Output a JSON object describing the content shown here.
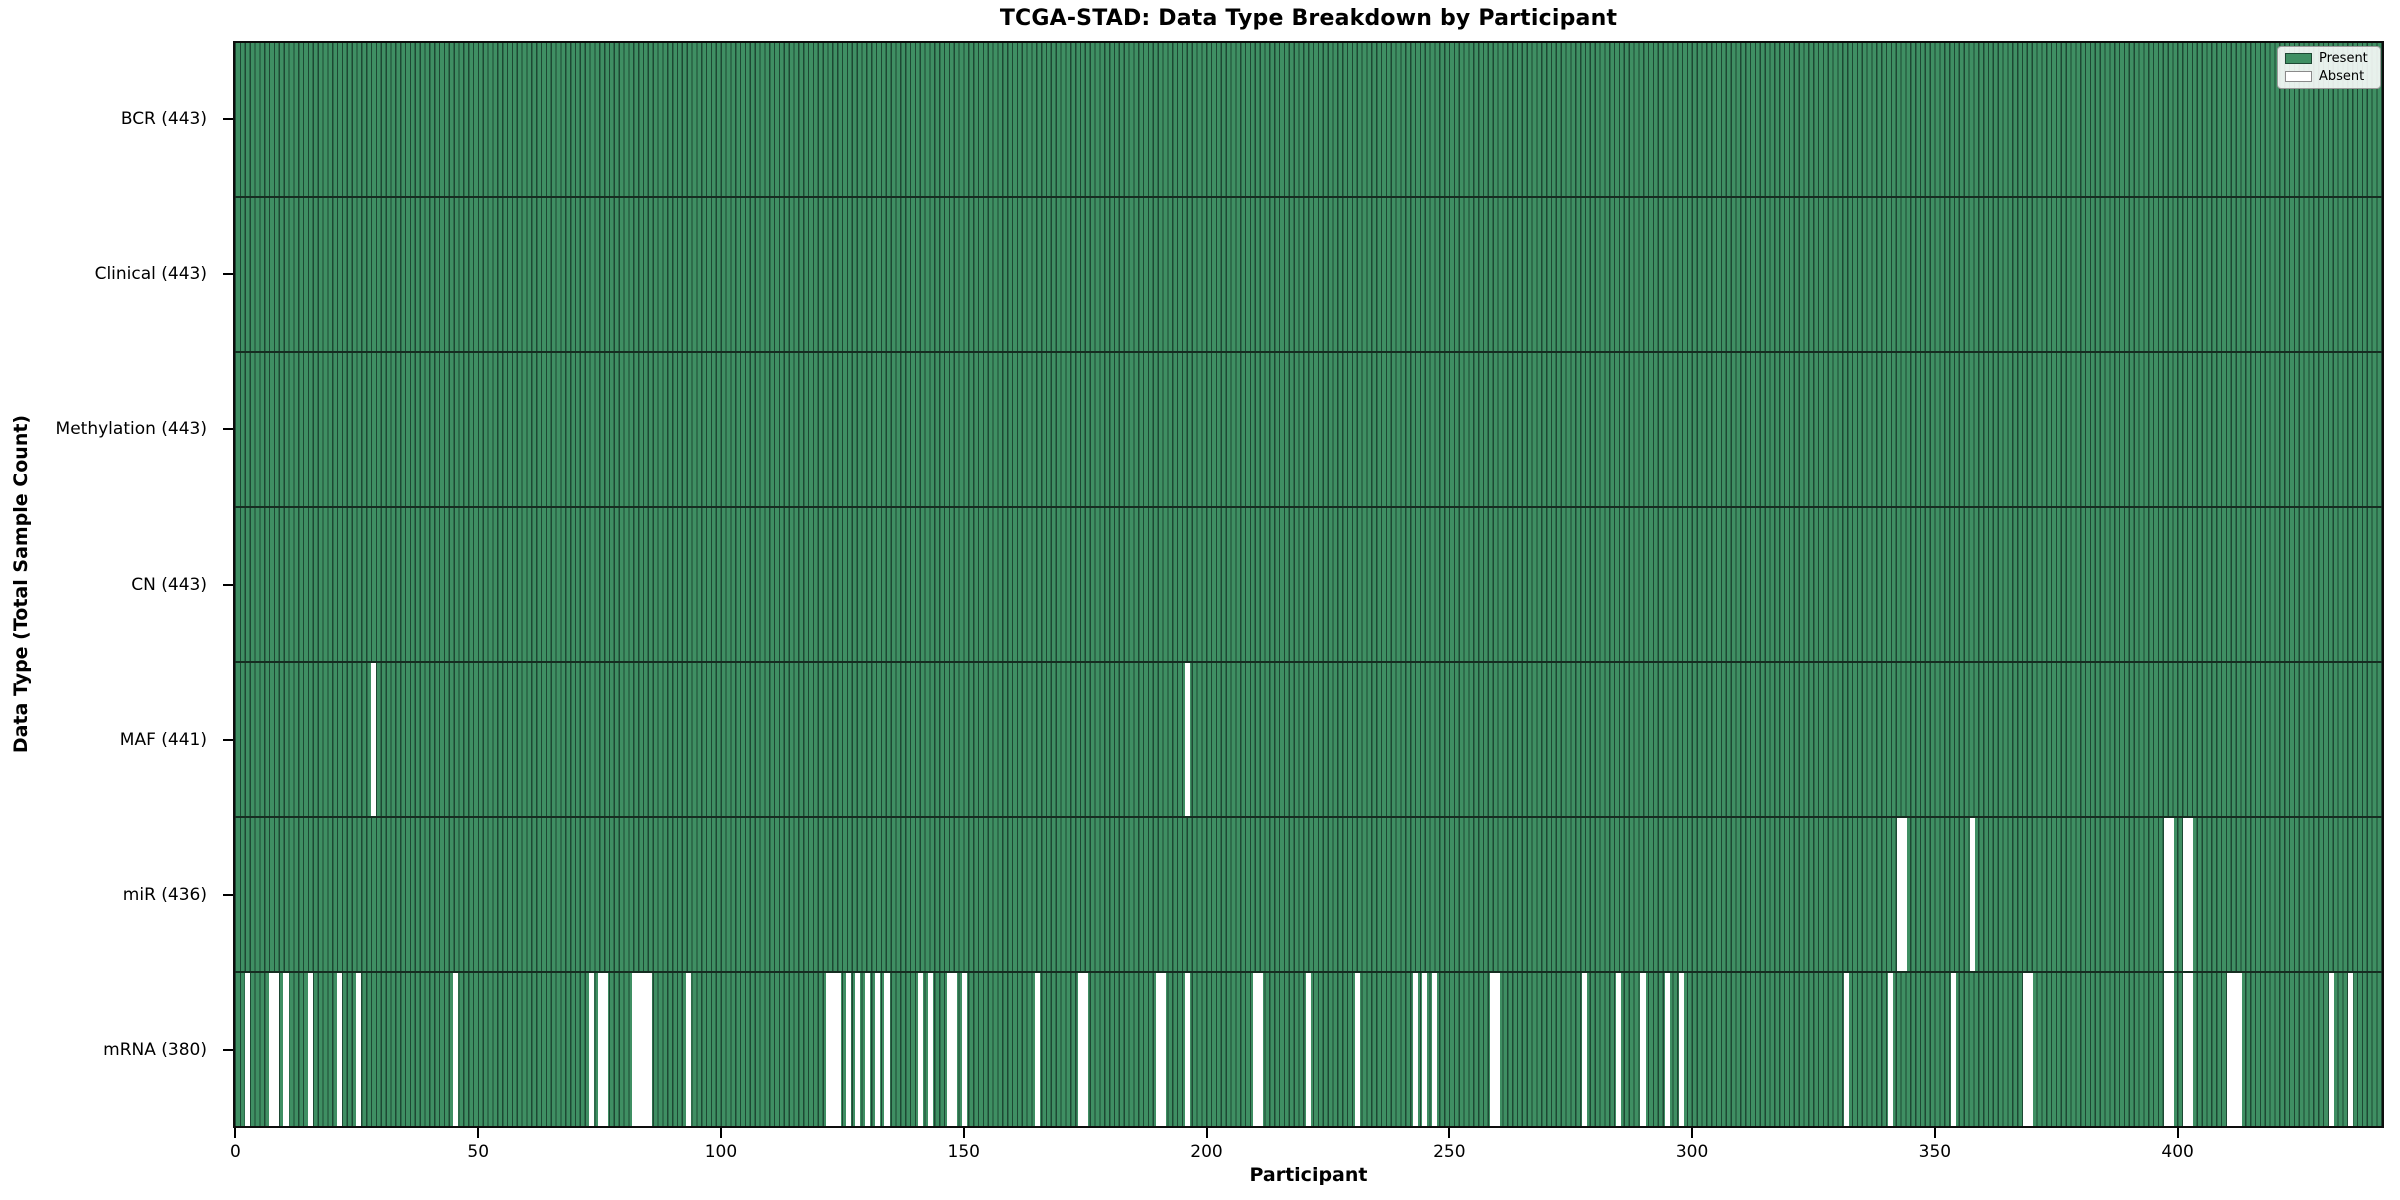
{
  "title": "TCGA-STAD: Data Type Breakdown by Participant",
  "axes": {
    "x_title": "Participant",
    "y_title": "Data Type (Total Sample Count)"
  },
  "legend": {
    "present_label": "Present",
    "absent_label": "Absent"
  },
  "colors": {
    "present_face": "#3f8f63",
    "present_edge": "#1d4833",
    "absent": "#ffffff",
    "row_divider": "#162d21",
    "plot_border": "#0d0d0d"
  },
  "chart_data": {
    "type": "heatmap",
    "title": "TCGA-STAD: Data Type Breakdown by Participant",
    "xlabel": "Participant",
    "ylabel": "Data Type (Total Sample Count)",
    "x_ticks": [
      0,
      50,
      100,
      150,
      200,
      250,
      300,
      350,
      400
    ],
    "x_range": [
      0,
      443
    ],
    "n_participants": 443,
    "legend_entries": [
      "Present",
      "Absent"
    ],
    "legend_position": "upper right",
    "grid": false,
    "rows": [
      {
        "name": "BCR",
        "label": "BCR (443)",
        "total": 443,
        "absent": []
      },
      {
        "name": "Clinical",
        "label": "Clinical (443)",
        "total": 443,
        "absent": []
      },
      {
        "name": "Methylation",
        "label": "Methylation (443)",
        "total": 443,
        "absent": []
      },
      {
        "name": "CN",
        "label": "CN (443)",
        "total": 443,
        "absent": []
      },
      {
        "name": "MAF",
        "label": "MAF (441)",
        "total": 441,
        "absent": [
          28,
          196
        ]
      },
      {
        "name": "miR",
        "label": "miR (436)",
        "total": 436,
        "absent": [
          343,
          344,
          358,
          398,
          399,
          402,
          403
        ]
      },
      {
        "name": "mRNA",
        "label": "mRNA (380)",
        "total": 380,
        "absent": [
          2,
          7,
          8,
          10,
          15,
          21,
          25,
          45,
          73,
          75,
          76,
          82,
          83,
          84,
          85,
          93,
          122,
          123,
          124,
          126,
          128,
          130,
          132,
          134,
          141,
          143,
          147,
          148,
          150,
          165,
          174,
          175,
          190,
          191,
          196,
          210,
          211,
          221,
          231,
          243,
          245,
          247,
          259,
          260,
          278,
          285,
          290,
          295,
          298,
          332,
          341,
          354,
          369,
          370,
          398,
          399,
          402,
          403,
          411,
          412,
          413,
          432,
          436
        ]
      }
    ]
  }
}
